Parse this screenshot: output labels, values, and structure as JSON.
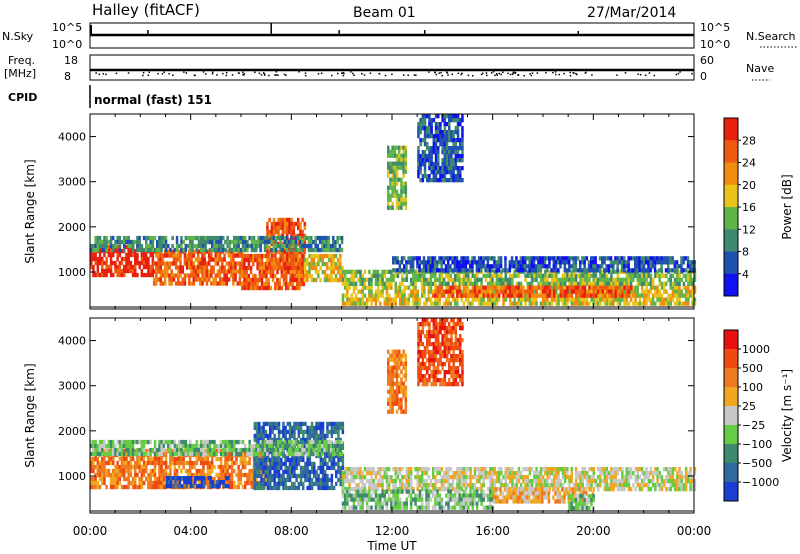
{
  "header": {
    "station": "Halley (fitACF)",
    "beam": "Beam 01",
    "date": "27/Mar/2014"
  },
  "top_panels": {
    "nsky_label": "N.Sky",
    "nsky_top": "10^5",
    "nsky_bottom": "10^0",
    "nsearch_label": "N.Search",
    "freq_label_1": "Freq.",
    "freq_label_2": "[MHz]",
    "freq_ticks": [
      "18",
      "8"
    ],
    "nave_label": "Nave",
    "nave_ticks": [
      "60",
      "0"
    ],
    "cpid_label": "CPID",
    "cpid_value": "normal (fast) 151"
  },
  "chart_data": [
    {
      "type": "heatmap",
      "name": "power",
      "ylabel": "Slant Range [km]",
      "xlabel": "Time UT",
      "x_ticks": [
        "00:00",
        "04:00",
        "08:00",
        "12:00",
        "16:00",
        "20:00",
        "00:00"
      ],
      "x_range_hours": [
        0,
        24
      ],
      "y_ticks": [
        1000,
        2000,
        3000,
        4000
      ],
      "ylim": [
        180,
        4500
      ],
      "colorbar": {
        "label": "Power [dB]",
        "ticks": [
          "4",
          "8",
          "12",
          "16",
          "20",
          "24",
          "28"
        ],
        "colors": [
          "#1010f0",
          "#2050b0",
          "#3f8a6f",
          "#5fb54a",
          "#e8c41a",
          "#f08c10",
          "#f05a10",
          "#e82010"
        ]
      },
      "regions": [
        {
          "t0": 0.0,
          "t1": 2.5,
          "r0": 900,
          "r1": 1600,
          "level": 7
        },
        {
          "t0": 2.5,
          "t1": 6.0,
          "r0": 750,
          "r1": 1500,
          "level": 6
        },
        {
          "t0": 6.0,
          "t1": 8.5,
          "r0": 650,
          "r1": 1400,
          "level": 6
        },
        {
          "t0": 7.0,
          "t1": 8.5,
          "r0": 1100,
          "r1": 2200,
          "level": 6
        },
        {
          "t0": 8.5,
          "t1": 10.0,
          "r0": 800,
          "r1": 1400,
          "level": 4
        },
        {
          "t0": 0.0,
          "t1": 10.0,
          "r0": 1500,
          "r1": 1800,
          "level": 2
        },
        {
          "t0": 10.0,
          "t1": 24.0,
          "r0": 300,
          "r1": 700,
          "level": 4
        },
        {
          "t0": 10.0,
          "t1": 24.0,
          "r0": 700,
          "r1": 1050,
          "level": 3
        },
        {
          "t0": 13.5,
          "t1": 21.5,
          "r0": 450,
          "r1": 700,
          "level": 6
        },
        {
          "t0": 12.0,
          "t1": 24.0,
          "r0": 1050,
          "r1": 1350,
          "level": 1
        },
        {
          "t0": 11.8,
          "t1": 12.5,
          "r0": 2400,
          "r1": 3800,
          "level": 3
        },
        {
          "t0": 13.0,
          "t1": 14.8,
          "r0": 3000,
          "r1": 4500,
          "level": 1
        }
      ]
    },
    {
      "type": "heatmap",
      "name": "velocity",
      "ylabel": "Slant Range [km]",
      "xlabel": "Time UT",
      "x_ticks": [
        "00:00",
        "04:00",
        "08:00",
        "12:00",
        "16:00",
        "20:00",
        "00:00"
      ],
      "x_range_hours": [
        0,
        24
      ],
      "y_ticks": [
        1000,
        2000,
        3000,
        4000
      ],
      "ylim": [
        180,
        4500
      ],
      "colorbar": {
        "label": "Velocity [m s⁻¹]",
        "ticks": [
          "1000",
          "500",
          "100",
          "25",
          "−25",
          "−100",
          "−500",
          "−1000"
        ],
        "colors": [
          "#1a3fd0",
          "#3068a0",
          "#3f8a6f",
          "#66cc44",
          "#c8c8c8",
          "#f0a820",
          "#f07820",
          "#f04a10",
          "#e81010"
        ]
      },
      "regions": [
        {
          "t0": 0.0,
          "t1": 7.0,
          "r0": 750,
          "r1": 1600,
          "level": 6
        },
        {
          "t0": 6.5,
          "t1": 10.0,
          "r0": 700,
          "r1": 2200,
          "level": 1
        },
        {
          "t0": 3.0,
          "t1": 5.5,
          "r0": 800,
          "r1": 1000,
          "level": 0
        },
        {
          "t0": 0.0,
          "t1": 10.0,
          "r0": 1500,
          "r1": 1800,
          "level": 3
        },
        {
          "t0": 10.0,
          "t1": 24.0,
          "r0": 700,
          "r1": 1200,
          "level": 4
        },
        {
          "t0": 10.0,
          "t1": 16.0,
          "r0": 300,
          "r1": 700,
          "level": 3
        },
        {
          "t0": 16.0,
          "t1": 20.0,
          "r0": 400,
          "r1": 750,
          "level": 5
        },
        {
          "t0": 19.0,
          "t1": 20.0,
          "r0": 300,
          "r1": 600,
          "level": 3
        },
        {
          "t0": 11.8,
          "t1": 12.5,
          "r0": 2400,
          "r1": 3800,
          "level": 6
        },
        {
          "t0": 13.0,
          "t1": 14.8,
          "r0": 3000,
          "r1": 4500,
          "level": 7
        }
      ]
    }
  ]
}
